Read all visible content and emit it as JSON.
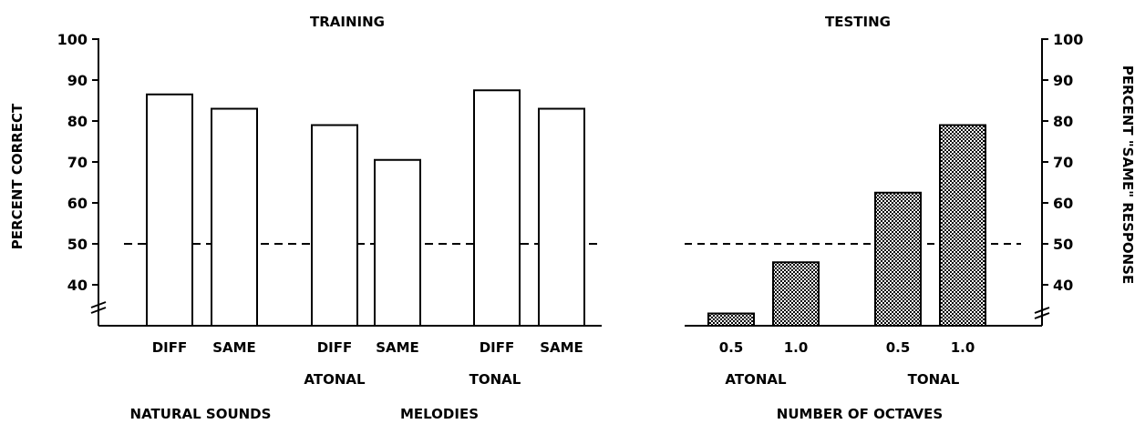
{
  "colors": {
    "ink": "#000000",
    "background": "#ffffff",
    "hatch_fill": "#b8b8b8"
  },
  "chart_data": [
    {
      "type": "bar",
      "title": "TRAINING",
      "ylabel": "PERCENT CORRECT",
      "ylim": [
        30,
        100
      ],
      "yticks": [
        "40",
        "50",
        "60",
        "70",
        "80",
        "90",
        "100"
      ],
      "axis_side": "left",
      "axis_break": true,
      "reference_line": 50,
      "fill": "open",
      "categories": [
        "DIFF",
        "SAME",
        "DIFF",
        "SAME",
        "DIFF",
        "SAME"
      ],
      "values": [
        86.5,
        83,
        79,
        70.5,
        87.5,
        83
      ],
      "group_labels": [
        "ATONAL",
        "TONAL"
      ],
      "bottom_labels": [
        "NATURAL SOUNDS",
        "MELODIES"
      ]
    },
    {
      "type": "bar",
      "title": "TESTING",
      "ylabel": "PERCENT \"SAME\" RESPONSE",
      "ylim": [
        30,
        100
      ],
      "yticks": [
        "40",
        "50",
        "60",
        "70",
        "80",
        "90",
        "100"
      ],
      "axis_side": "right",
      "axis_break": true,
      "reference_line": 50,
      "fill": "hatched",
      "categories": [
        "0.5",
        "1.0",
        "0.5",
        "1.0"
      ],
      "values": [
        33,
        45.5,
        62.5,
        79
      ],
      "group_labels": [
        "ATONAL",
        "TONAL"
      ],
      "xlabel": "NUMBER OF OCTAVES"
    }
  ]
}
